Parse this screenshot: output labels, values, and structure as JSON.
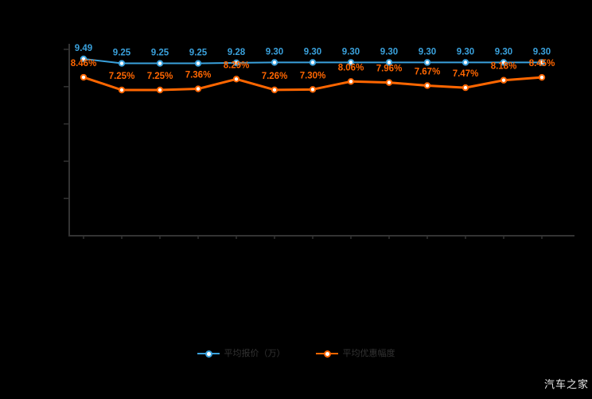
{
  "page": {
    "background": "#000000",
    "axis_color": "#333333"
  },
  "watermark": {
    "text": "汽车之家",
    "color": "#e8e8e8"
  },
  "legend": {
    "position": "bottom-center",
    "items": [
      {
        "label": "平均报价（万）",
        "color": "#3aa1dc"
      },
      {
        "label": "平均优惠幅度",
        "color": "#ff6600"
      }
    ]
  },
  "chart_data": {
    "type": "line",
    "title": "",
    "xlabel": "",
    "ylabel": "",
    "point_count": 13,
    "x_axis": {
      "tick_labels_visible": false
    },
    "left_axis": {
      "range": [
        0,
        10
      ],
      "ticks": [
        2,
        4,
        6,
        8,
        10
      ],
      "tick_labels_visible": false
    },
    "grid": false,
    "legend_position": "bottom-center",
    "series": [
      {
        "name": "平均报价（万）",
        "color": "#3aa1dc",
        "values": [
          9.49,
          9.25,
          9.25,
          9.25,
          9.28,
          9.3,
          9.3,
          9.3,
          9.3,
          9.3,
          9.3,
          9.3,
          9.3
        ],
        "labels": [
          "9.49",
          "9.25",
          "9.25",
          "9.25",
          "9.28",
          "9.30",
          "9.30",
          "9.30",
          "9.30",
          "9.30",
          "9.30",
          "9.30",
          "9.30"
        ]
      },
      {
        "name": "平均优惠幅度",
        "color": "#ff6600",
        "values": [
          8.46,
          7.25,
          7.25,
          7.36,
          8.29,
          7.26,
          7.3,
          8.06,
          7.96,
          7.67,
          7.47,
          8.18,
          8.45
        ],
        "labels": [
          "8.46%",
          "7.25%",
          "7.25%",
          "7.36%",
          "8.29%",
          "7.26%",
          "7.30%",
          "8.06%",
          "7.96%",
          "7.67%",
          "7.47%",
          "8.18%",
          "8.45%"
        ]
      }
    ]
  }
}
